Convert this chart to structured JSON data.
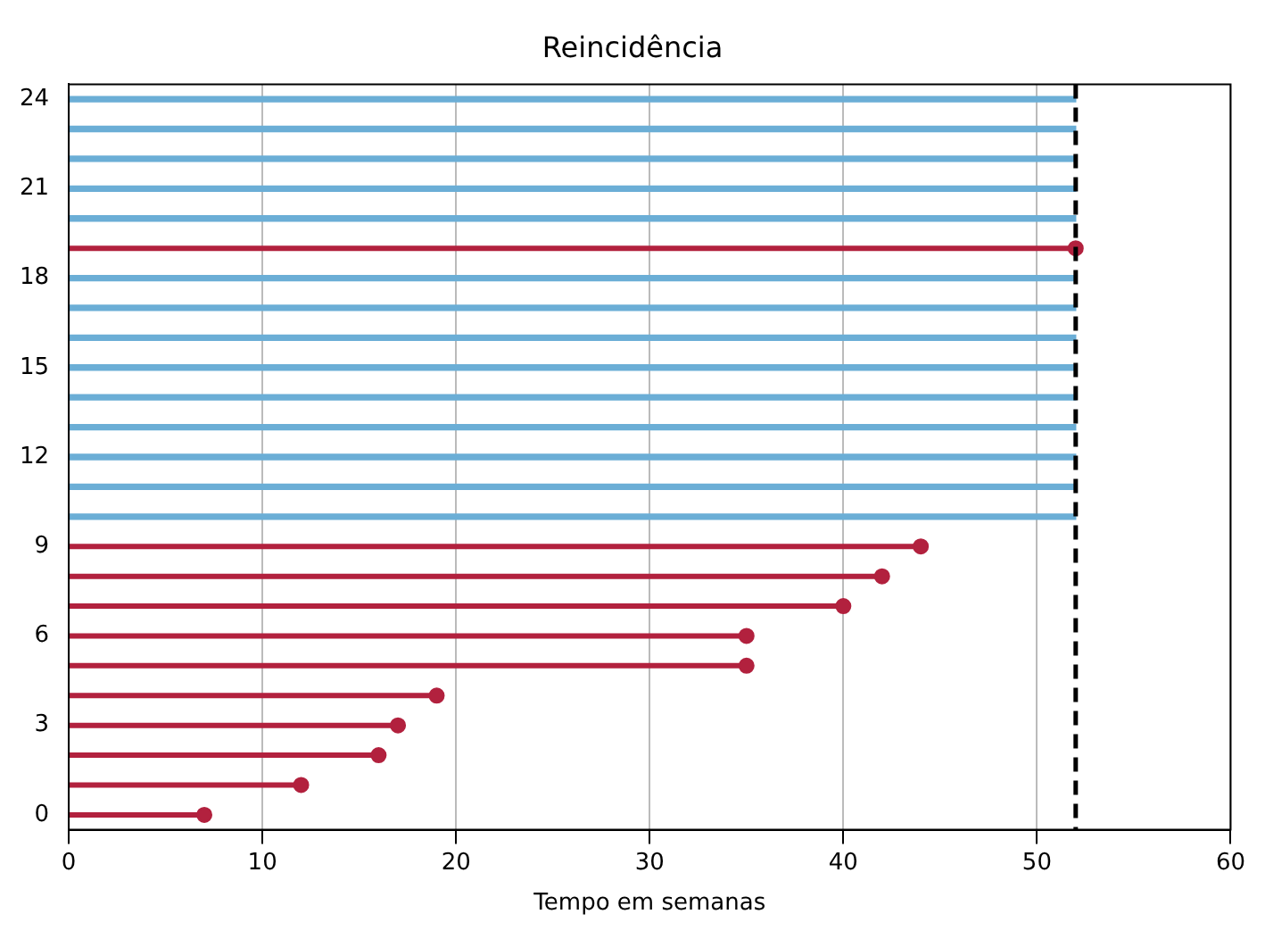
{
  "chart_data": {
    "type": "lollipop",
    "orientation": "horizontal",
    "title": "Reincidência",
    "xlabel": "Tempo em semanas",
    "categories": [
      "24",
      null,
      null,
      "21",
      null,
      null,
      "18",
      null,
      null,
      "15",
      null,
      null,
      "12",
      null,
      null,
      "9",
      null,
      null,
      "6",
      null,
      null,
      "3",
      null,
      null,
      "0"
    ],
    "series": [
      {
        "type": "bar",
        "color": "#6baed6",
        "values": [
          52,
          52,
          52,
          52,
          52,
          null,
          52,
          52,
          52,
          52,
          52,
          52,
          52,
          52,
          52,
          null,
          null,
          null,
          null,
          null,
          null,
          null,
          null,
          null,
          null
        ]
      },
      {
        "color": "#b2213e",
        "marker": "circle",
        "values": [
          null,
          null,
          null,
          null,
          null,
          52,
          null,
          null,
          null,
          null,
          null,
          null,
          null,
          null,
          null,
          44,
          42,
          40,
          35,
          35,
          19,
          17,
          16,
          12,
          7
        ]
      }
    ],
    "xlim": [
      0,
      60
    ],
    "xticks": [
      0,
      10,
      20,
      30,
      40,
      50,
      60
    ],
    "grid": "x",
    "legend": false,
    "ref_lines": [
      {
        "axis": "x",
        "value": 52,
        "color": "#000000",
        "line_style": "dashed"
      }
    ]
  }
}
